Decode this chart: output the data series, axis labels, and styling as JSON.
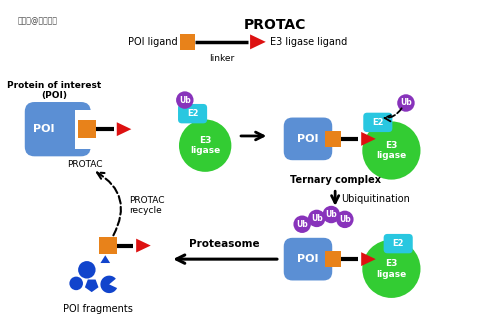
{
  "title": "PROTAC",
  "watermark": "搜狐号@青莲百奥",
  "bg_color": "#ffffff",
  "colors": {
    "poi_blue": "#5b8fd4",
    "e3_green": "#33cc33",
    "e2_cyan": "#29c7e0",
    "orange": "#e8821a",
    "red_arrow": "#dd1111",
    "ub_purple": "#8833bb",
    "black": "#000000",
    "blue_frag": "#1144cc",
    "white": "#ffffff"
  },
  "labels": {
    "title": "PROTAC",
    "watermark": "搜狐号@青莲百奥",
    "poi_ligand": "POI ligand",
    "e3_ligase_ligand": "E3 ligase ligand",
    "linker": "linker",
    "protein_of_interest": "Protein of interest\n(POI)",
    "poi": "POI",
    "e3_ligase": "E3\nligase",
    "e2": "E2",
    "ub": "Ub",
    "protac": "PROTAC",
    "ternary_complex": "Ternary complex",
    "arrow_ubiq": "↓ Ubiquitination",
    "protac_recycle": "PROTAC\nrecycle",
    "proteasome": "Proteasome",
    "poi_fragments": "POI fragments"
  }
}
